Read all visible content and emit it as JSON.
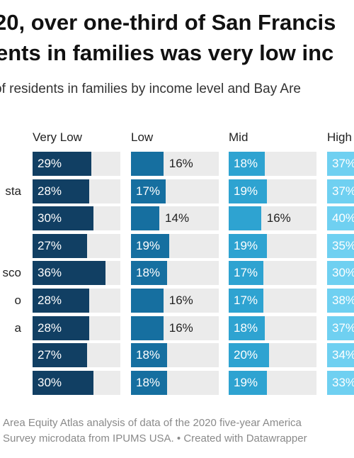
{
  "header": {
    "title_line1": "20, over one-third of San Francis",
    "title_line2": "ents in families was very low inc",
    "subtitle": "of residents in families by income level and Bay Are"
  },
  "footer": {
    "source_line1": "Area Equity Atlas analysis of data of the 2020 five-year America",
    "source_line2": "Survey microdata from IPUMS USA. • Created with Datawrapper"
  },
  "colors": {
    "very_low": "#113f63",
    "low": "#166fa0",
    "mid": "#2ea3d1",
    "high": "#6fd0f1",
    "track": "#ebebeb"
  },
  "chart_data": {
    "type": "bar",
    "title": "",
    "categories": [
      "",
      "sta",
      "",
      "",
      "sco",
      "o",
      "a",
      "",
      ""
    ],
    "series": [
      {
        "name": "Very Low",
        "values": [
          29,
          28,
          30,
          27,
          36,
          28,
          28,
          27,
          30
        ]
      },
      {
        "name": "Low",
        "values": [
          16,
          17,
          14,
          19,
          18,
          16,
          16,
          18,
          18
        ]
      },
      {
        "name": "Mid",
        "values": [
          18,
          19,
          16,
          19,
          17,
          17,
          18,
          20,
          19
        ]
      },
      {
        "name": "High",
        "values": [
          37,
          37,
          40,
          35,
          30,
          38,
          37,
          34,
          33
        ]
      }
    ],
    "value_suffix": "%",
    "xlim": [
      0,
      40
    ],
    "grid": false,
    "legend": "column headers"
  }
}
